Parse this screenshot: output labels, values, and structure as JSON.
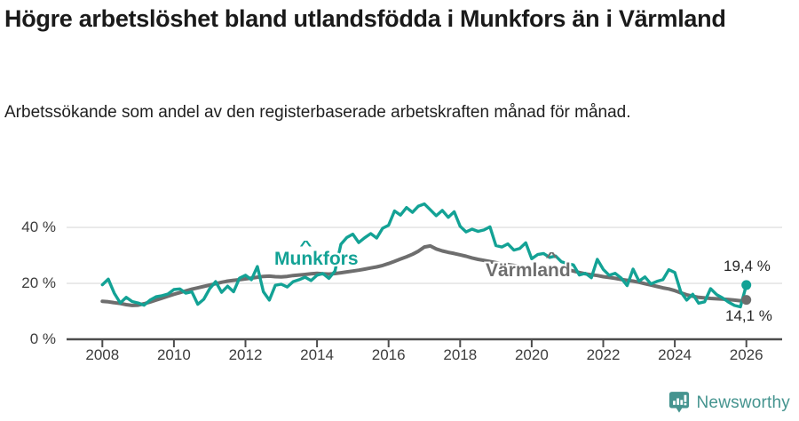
{
  "chart_data": {
    "type": "line",
    "title": "Högre arbetslöshet bland utlandsfödda i Munkfors än i Värmland",
    "subtitle": "Arbetssökande som andel av den registerbaserade arbetskraften månad för månad.",
    "xlim": [
      2007,
      2027
    ],
    "ylim": [
      0,
      54
    ],
    "grid": "horizontal-only",
    "x_ticks": [
      2008,
      2010,
      2012,
      2014,
      2016,
      2018,
      2020,
      2022,
      2024,
      2026
    ],
    "x_tick_labels": [
      "2008",
      "2010",
      "2012",
      "2014",
      "2016",
      "2018",
      "2020",
      "2022",
      "2024",
      "2026"
    ],
    "y_ticks": [
      0,
      20,
      40
    ],
    "y_tick_labels": [
      "0 %",
      "20 %",
      "40 %"
    ],
    "x_start": 2008,
    "x_step": 0.1666667,
    "legend_position": "inline-labels-on-lines",
    "series": [
      {
        "name": "Munkfors",
        "color": "#13a295",
        "end_label": "19,4 %",
        "final_value": 19.4,
        "values": [
          19.5,
          21.5,
          16.5,
          13.0,
          15.0,
          13.5,
          13.0,
          12.2,
          14.0,
          15.2,
          15.6,
          16.2,
          17.8,
          18.0,
          16.5,
          17.0,
          12.5,
          14.3,
          18.1,
          20.6,
          16.8,
          19.0,
          17.0,
          21.9,
          22.9,
          21.3,
          26.0,
          17.0,
          14.0,
          19.3,
          19.7,
          18.7,
          20.6,
          21.3,
          22.2,
          21.0,
          22.9,
          23.5,
          21.8,
          24.4,
          34.0,
          36.4,
          37.6,
          34.6,
          36.3,
          37.8,
          36.2,
          39.7,
          40.8,
          45.9,
          44.4,
          47.1,
          45.4,
          47.6,
          48.4,
          46.3,
          44.2,
          46.1,
          43.6,
          45.6,
          40.4,
          38.4,
          39.4,
          38.6,
          39.1,
          40.2,
          33.5,
          33.0,
          34.1,
          31.9,
          32.5,
          34.5,
          28.8,
          30.3,
          30.7,
          29.3,
          29.8,
          27.7,
          27.1,
          26.6,
          23.0,
          23.6,
          22.0,
          28.6,
          25.0,
          22.9,
          23.6,
          21.9,
          19.2,
          25.1,
          20.8,
          22.3,
          19.8,
          20.7,
          21.3,
          24.9,
          23.9,
          17.0,
          14.0,
          16.1,
          12.9,
          13.4,
          18.1,
          16.0,
          14.8,
          13.3,
          12.1,
          11.6,
          19.4
        ]
      },
      {
        "name": "Värmland",
        "color": "#6e6e6e",
        "end_label": "14,1 %",
        "final_value": 14.1,
        "values": [
          13.6,
          13.4,
          13.1,
          12.8,
          12.4,
          12.1,
          12.2,
          12.7,
          13.3,
          14.0,
          14.7,
          15.4,
          16.1,
          16.7,
          17.3,
          17.9,
          18.4,
          18.9,
          19.4,
          19.9,
          20.4,
          20.8,
          21.1,
          21.3,
          21.6,
          21.9,
          22.2,
          22.5,
          22.6,
          22.4,
          22.3,
          22.5,
          22.8,
          23.0,
          23.2,
          23.4,
          23.6,
          23.4,
          23.3,
          23.5,
          23.8,
          24.1,
          24.4,
          24.7,
          25.1,
          25.5,
          25.9,
          26.4,
          27.1,
          27.9,
          28.7,
          29.5,
          30.4,
          31.5,
          33.0,
          33.4,
          32.3,
          31.6,
          31.1,
          30.7,
          30.2,
          29.7,
          29.1,
          28.6,
          28.2,
          27.8,
          27.4,
          27.0,
          26.7,
          26.4,
          26.1,
          25.9,
          25.7,
          25.9,
          26.1,
          25.9,
          25.6,
          25.3,
          24.9,
          24.4,
          23.9,
          23.4,
          23.1,
          22.8,
          22.4,
          22.1,
          21.8,
          21.4,
          21.1,
          20.8,
          20.4,
          19.9,
          19.4,
          18.9,
          18.4,
          18.0,
          17.4,
          16.6,
          15.9,
          15.4,
          15.0,
          14.8,
          14.6,
          14.5,
          14.4,
          14.2,
          14.0,
          13.8,
          14.1
        ]
      }
    ]
  },
  "footer": {
    "brand": "Newsworthy",
    "brand_color": "#45948f"
  }
}
